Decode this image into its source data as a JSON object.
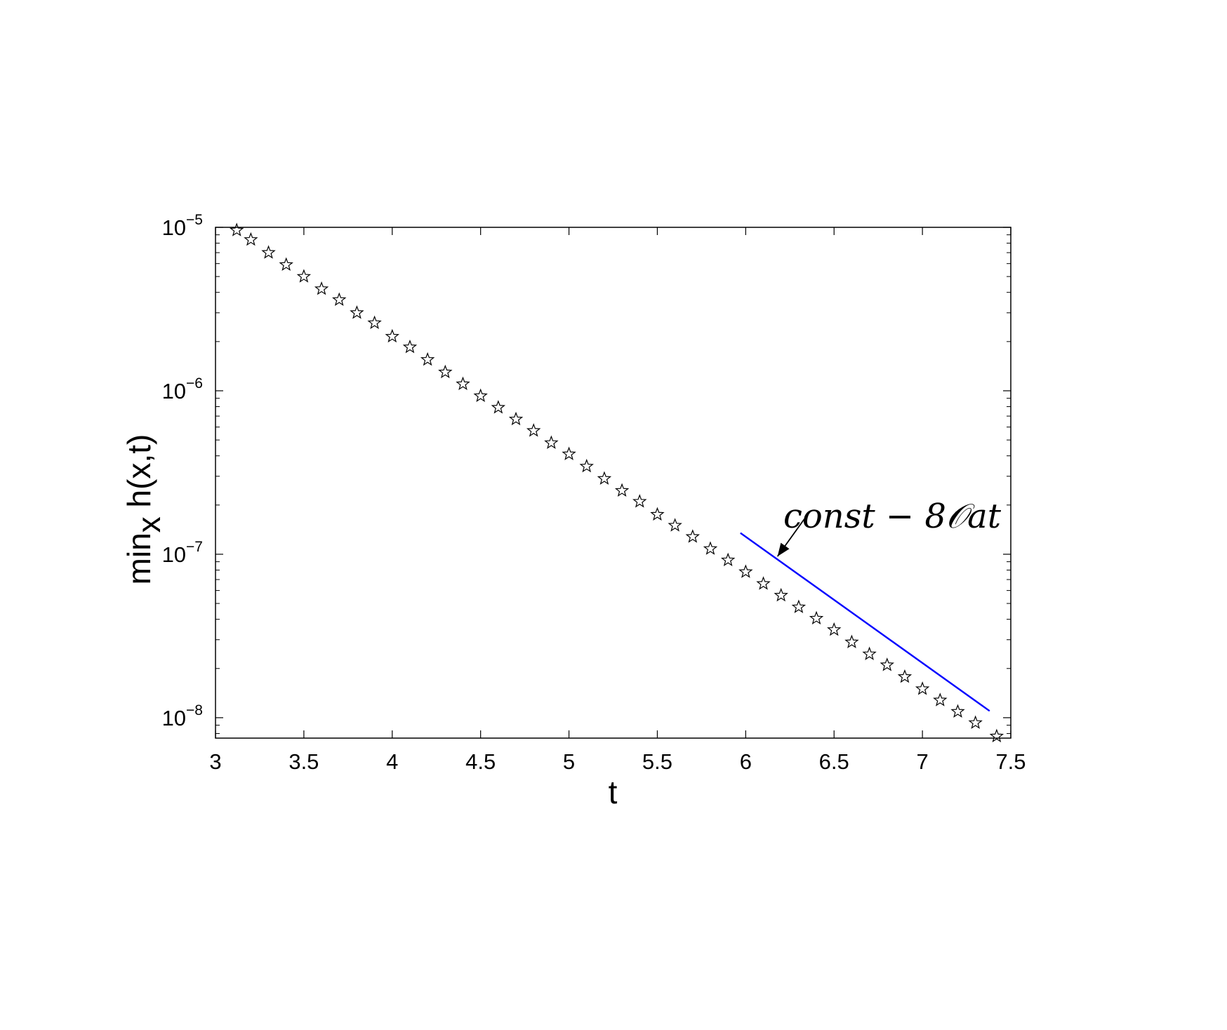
{
  "chart_data": {
    "type": "scatter",
    "title": "",
    "xlabel": "t",
    "ylabel": "min_x h(x,t)",
    "ylabel_parts": {
      "main": "min",
      "sub": "x",
      "rest": " h(x,t)"
    },
    "xlim": [
      3,
      7.5
    ],
    "ylim": [
      7.5e-09,
      1e-05
    ],
    "yscale": "log",
    "x_ticks": [
      3,
      3.5,
      4,
      4.5,
      5,
      5.5,
      6,
      6.5,
      7,
      7.5
    ],
    "x_tick_labels": [
      "3",
      "3.5",
      "4",
      "4.5",
      "5",
      "5.5",
      "6",
      "6.5",
      "7",
      "7.5"
    ],
    "y_ticks": [
      {
        "value": 1e-08,
        "base": "10",
        "exp": "−8"
      },
      {
        "value": 1e-07,
        "base": "10",
        "exp": "−7"
      },
      {
        "value": 1e-06,
        "base": "10",
        "exp": "−6"
      },
      {
        "value": 1e-05,
        "base": "10",
        "exp": "−5"
      }
    ],
    "grid": false,
    "series": [
      {
        "marker": "star",
        "color": "#000000",
        "points": [
          [
            3.12,
            9.6e-06
          ],
          [
            3.2,
            8.4e-06
          ],
          [
            3.3,
            7e-06
          ],
          [
            3.4,
            5.9e-06
          ],
          [
            3.5,
            5e-06
          ],
          [
            3.6,
            4.2e-06
          ],
          [
            3.7,
            3.6e-06
          ],
          [
            3.8,
            3e-06
          ],
          [
            3.9,
            2.6e-06
          ],
          [
            4.0,
            2.15e-06
          ],
          [
            4.1,
            1.85e-06
          ],
          [
            4.2,
            1.55e-06
          ],
          [
            4.3,
            1.3e-06
          ],
          [
            4.4,
            1.1e-06
          ],
          [
            4.5,
            9.3e-07
          ],
          [
            4.6,
            7.9e-07
          ],
          [
            4.7,
            6.7e-07
          ],
          [
            4.8,
            5.7e-07
          ],
          [
            4.9,
            4.8e-07
          ],
          [
            5.0,
            4.1e-07
          ],
          [
            5.1,
            3.45e-07
          ],
          [
            5.2,
            2.9e-07
          ],
          [
            5.3,
            2.45e-07
          ],
          [
            5.4,
            2.1e-07
          ],
          [
            5.5,
            1.75e-07
          ],
          [
            5.6,
            1.5e-07
          ],
          [
            5.7,
            1.28e-07
          ],
          [
            5.8,
            1.08e-07
          ],
          [
            5.9,
            9.2e-08
          ],
          [
            6.0,
            7.8e-08
          ],
          [
            6.1,
            6.6e-08
          ],
          [
            6.2,
            5.6e-08
          ],
          [
            6.3,
            4.75e-08
          ],
          [
            6.4,
            4.05e-08
          ],
          [
            6.5,
            3.45e-08
          ],
          [
            6.6,
            2.9e-08
          ],
          [
            6.7,
            2.45e-08
          ],
          [
            6.8,
            2.1e-08
          ],
          [
            6.9,
            1.78e-08
          ],
          [
            7.0,
            1.5e-08
          ],
          [
            7.1,
            1.28e-08
          ],
          [
            7.2,
            1.09e-08
          ],
          [
            7.3,
            9.3e-09
          ],
          [
            7.42,
            7.7e-09
          ]
        ]
      },
      {
        "marker": "none",
        "color": "#0000ff",
        "points": [
          [
            5.97,
            1.35e-07
          ],
          [
            7.38,
            1.1e-08
          ]
        ]
      }
    ],
    "annotation": {
      "text": "const − 8𝒪at",
      "arrow_tip": [
        6.18,
        9.7e-08
      ]
    }
  }
}
